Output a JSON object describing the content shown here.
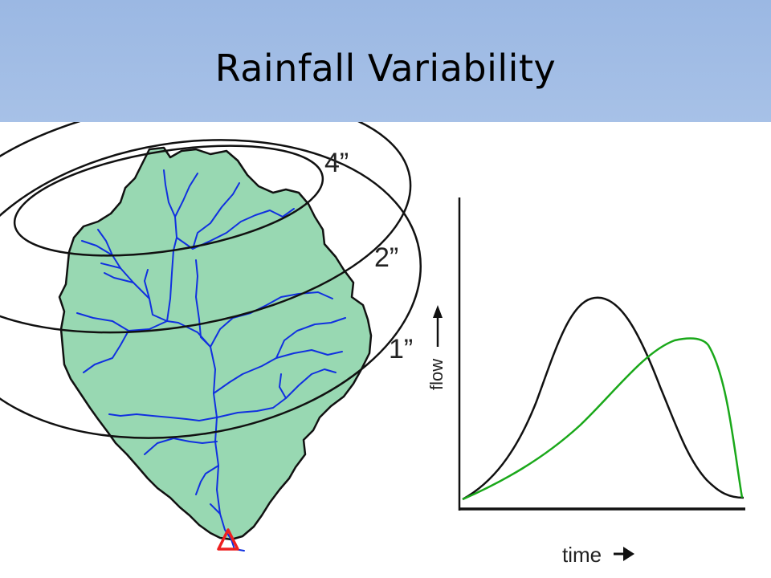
{
  "slide": {
    "title": "Rainfall Variability"
  },
  "isohyets": {
    "labels": [
      "4”",
      "2”",
      "1”"
    ]
  },
  "hydrograph": {
    "y_axis_label": "flow",
    "x_axis_label": "time",
    "colors": {
      "curve_upper": "#111111",
      "curve_lower": "#1aa81a"
    }
  },
  "colors": {
    "title_bar": "#9bb8e3",
    "watershed_fill": "#98d8b2",
    "streams": "#1030e0",
    "outlet": "#ee2020"
  }
}
